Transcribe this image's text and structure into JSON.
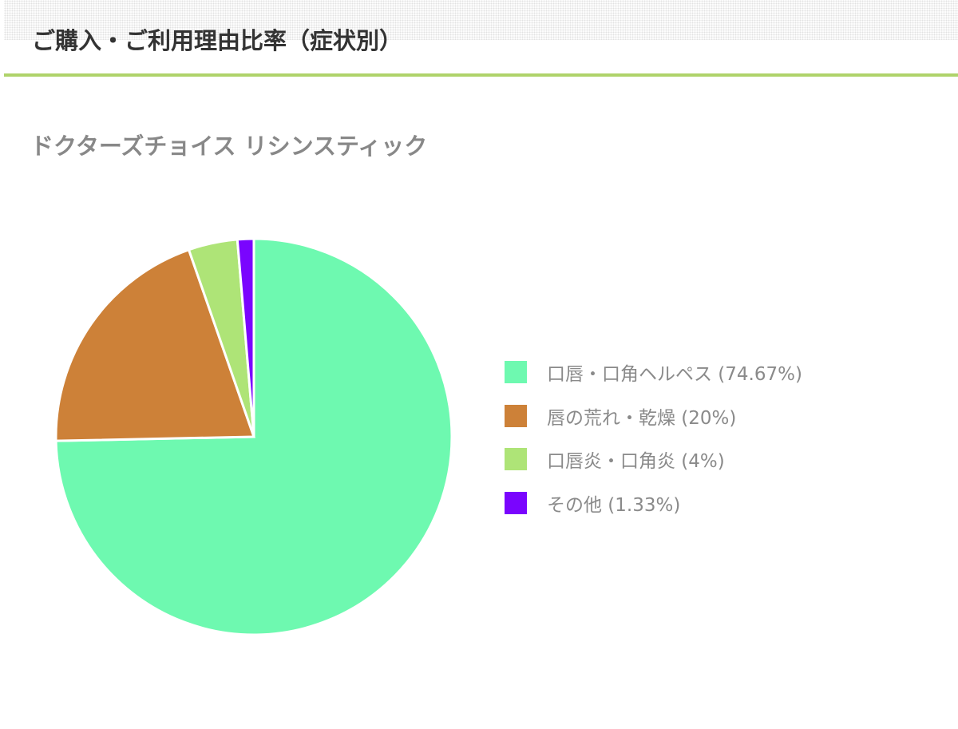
{
  "header": {
    "title": "ご購入・ご利用理由比率（症状別）"
  },
  "chart_data": {
    "type": "pie",
    "title": "ドクターズチョイス リシンスティック",
    "legend_position": "right",
    "start_angle": "top, clockwise",
    "slices": [
      {
        "label": "口唇・口角ヘルペス (74.67%)",
        "value": 74.67,
        "color": "#6ef9b0"
      },
      {
        "label": "唇の荒れ・乾燥 (20%)",
        "value": 20,
        "color": "#cd8138"
      },
      {
        "label": "口唇炎・口角炎 (4%)",
        "value": 4,
        "color": "#aee477"
      },
      {
        "label": "その他 (1.33%)",
        "value": 1.33,
        "color": "#7a05fe"
      }
    ]
  }
}
